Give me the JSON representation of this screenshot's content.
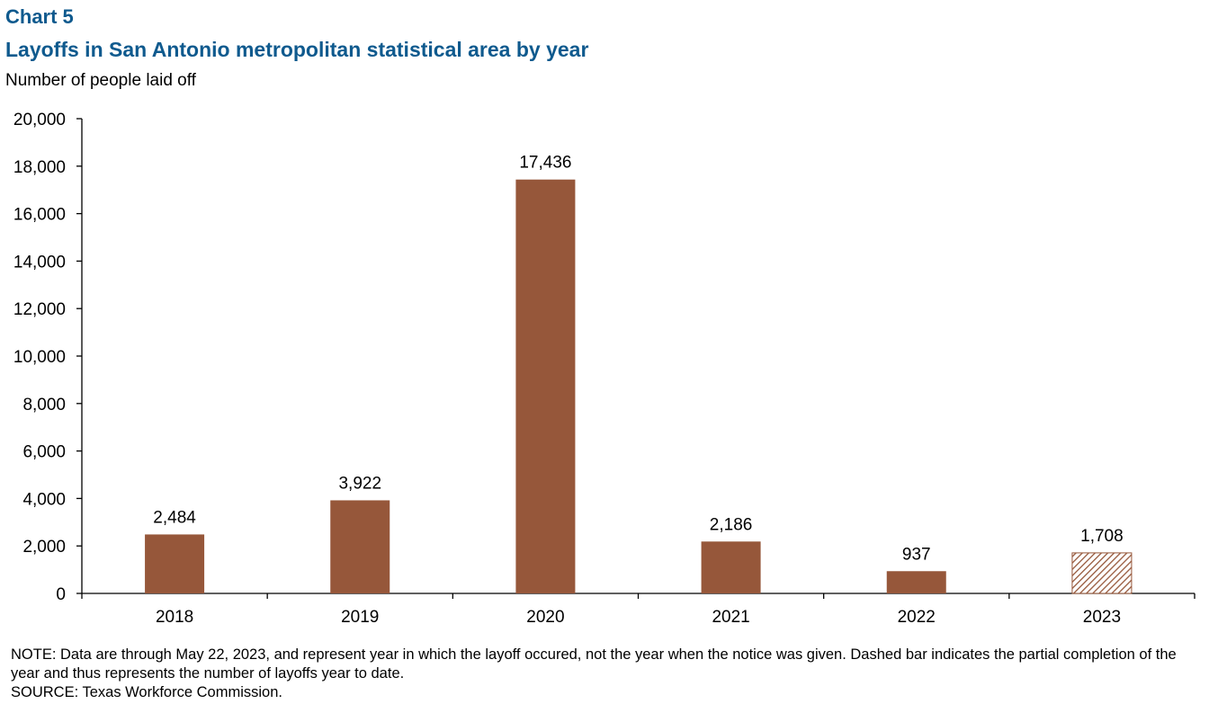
{
  "chart_label": "Chart 5",
  "chart_title": "Layoffs in San Antonio metropolitan statistical area by year",
  "chart_subtitle": "Number of people laid off",
  "colors": {
    "bar": "#96573a",
    "title": "#0f5a8e",
    "hatch": "#96573a"
  },
  "chart_data": {
    "type": "bar",
    "categories": [
      "2018",
      "2019",
      "2020",
      "2021",
      "2022",
      "2023"
    ],
    "values": [
      2484,
      3922,
      17436,
      2186,
      937,
      1708
    ],
    "value_labels": [
      "2,484",
      "3,922",
      "17,436",
      "2,186",
      "937",
      "1,708"
    ],
    "hatched": [
      false,
      false,
      false,
      false,
      false,
      true
    ],
    "ylim": [
      0,
      20000
    ],
    "yticks": [
      0,
      2000,
      4000,
      6000,
      8000,
      10000,
      12000,
      14000,
      16000,
      18000,
      20000
    ],
    "ytick_labels": [
      "0",
      "2,000",
      "4,000",
      "6,000",
      "8,000",
      "10,000",
      "12,000",
      "14,000",
      "16,000",
      "18,000",
      "20,000"
    ],
    "grid": false,
    "legend": "none"
  },
  "notes": {
    "note": "NOTE: Data are through May 22, 2023, and represent year in which the layoff occured, not the year when the notice was given. Dashed bar indicates the partial completion of the year and thus represents the number of layoffs year to date.",
    "source": "SOURCE: Texas Workforce Commission."
  }
}
